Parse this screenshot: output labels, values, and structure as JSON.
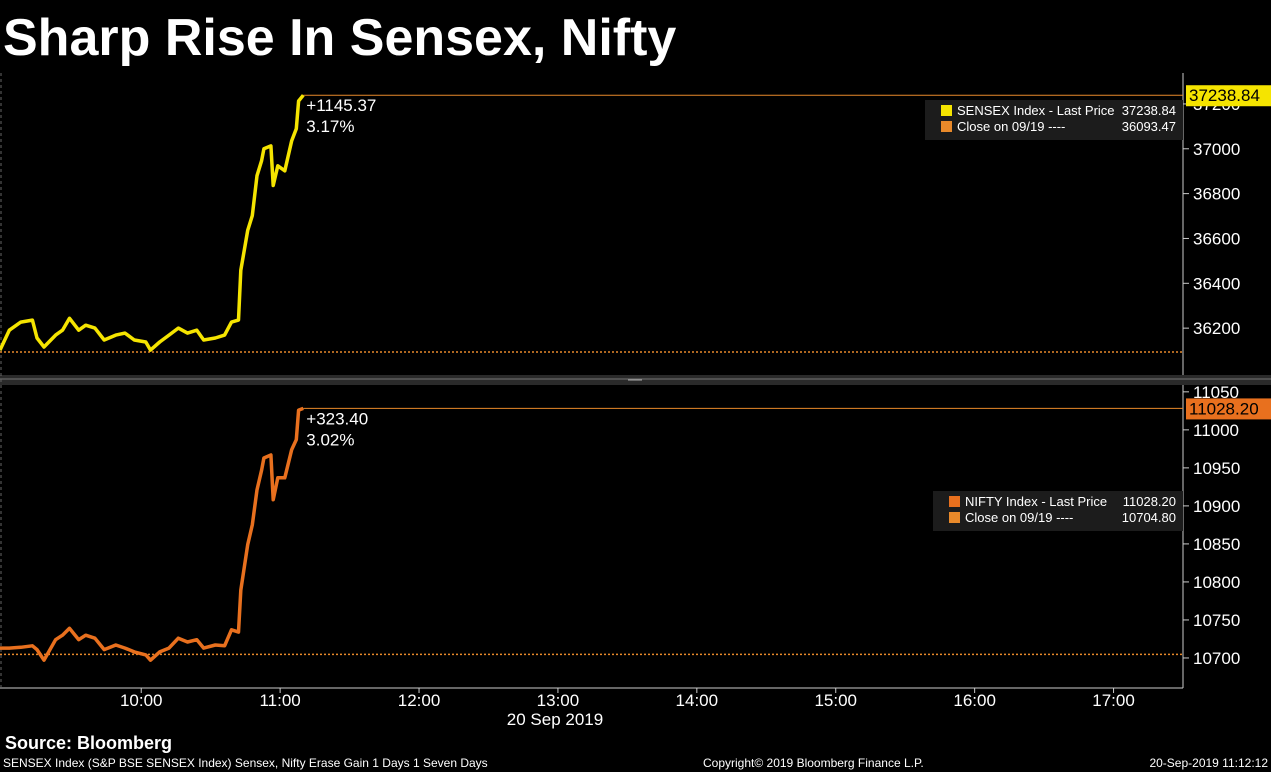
{
  "title": "Sharp Rise In Sensex, Nifty",
  "chart_data": [
    {
      "type": "line",
      "x": [
        539,
        543,
        548,
        553,
        555,
        558,
        563,
        566,
        569,
        573,
        576,
        580,
        584,
        589,
        593,
        597,
        602,
        604,
        608,
        612,
        616,
        620,
        624,
        627,
        632,
        636,
        639,
        642,
        643,
        646,
        648,
        650,
        652,
        653,
        656,
        657,
        659,
        662,
        665,
        667,
        668,
        670
      ],
      "series": [
        {
          "name": "SENSEX Index - Last Price",
          "color": "#f5e400",
          "values": [
            36102,
            36191,
            36227,
            36236,
            36156,
            36116,
            36169,
            36191,
            36244,
            36191,
            36213,
            36200,
            36147,
            36169,
            36178,
            36147,
            36138,
            36102,
            36138,
            36169,
            36200,
            36178,
            36191,
            36147,
            36156,
            36169,
            36227,
            36236,
            36458,
            36636,
            36702,
            36880,
            36947,
            37000,
            37013,
            36836,
            36924,
            36902,
            37036,
            37089,
            37213,
            37238.84
          ]
        }
      ],
      "close": {
        "name": "Close on 09/19 ----",
        "value": 36093.47,
        "label": "36093.47",
        "color": "#e8892a"
      },
      "last_price": {
        "value": 37238.84,
        "label": "37238.84"
      },
      "change_label": "+1145.37",
      "change_pct": "3.17%",
      "xlim": [
        539,
        1050
      ],
      "ylim": [
        35991,
        37338
      ],
      "yticks": [
        36200,
        36400,
        36600,
        36800,
        37000,
        37200
      ]
    },
    {
      "type": "line",
      "x": [
        539,
        543,
        548,
        553,
        555,
        558,
        563,
        566,
        569,
        573,
        576,
        580,
        584,
        589,
        593,
        597,
        602,
        604,
        608,
        612,
        616,
        620,
        624,
        627,
        632,
        636,
        639,
        642,
        643,
        646,
        648,
        650,
        652,
        653,
        656,
        657,
        659,
        662,
        665,
        667,
        668,
        670
      ],
      "series": [
        {
          "name": "NIFTY Index - Last Price",
          "color": "#e8701e",
          "values": [
            10713,
            10713,
            10714,
            10716,
            10711,
            10697,
            10724,
            10730,
            10739,
            10724,
            10730,
            10726,
            10711,
            10717,
            10713,
            10708,
            10704,
            10697,
            10708,
            10713,
            10726,
            10721,
            10724,
            10713,
            10717,
            10716,
            10737,
            10734,
            10789,
            10849,
            10875,
            10921,
            10947,
            10963,
            10967,
            10908,
            10937,
            10937,
            10974,
            10987,
            11026,
            11028.2
          ]
        }
      ],
      "close": {
        "name": "Close on 09/19 ----",
        "value": 10704.8,
        "label": "10704.80",
        "color": "#e8892a"
      },
      "last_price": {
        "value": 11028.2,
        "label": "11028.20"
      },
      "change_label": "+323.40",
      "change_pct": "3.02%",
      "xlim": [
        539,
        1050
      ],
      "xticks": [
        {
          "value": 600,
          "label": "10:00"
        },
        {
          "value": 660,
          "label": "11:00"
        },
        {
          "value": 720,
          "label": "12:00"
        },
        {
          "value": 780,
          "label": "13:00"
        },
        {
          "value": 840,
          "label": "14:00"
        },
        {
          "value": 900,
          "label": "15:00"
        },
        {
          "value": 960,
          "label": "16:00"
        },
        {
          "value": 1020,
          "label": "17:00"
        }
      ],
      "xlabel": "20 Sep 2019",
      "ylim": [
        10660.5,
        11059
      ],
      "yticks": [
        10700,
        10750,
        10800,
        10850,
        10900,
        10950,
        11000,
        11050
      ]
    }
  ],
  "footer": {
    "source": "Source: Bloomberg",
    "description": "SENSEX Index (S&P BSE SENSEX Index) Sensex, Nifty Erase Gain 1 Days 1 Seven Days",
    "copyright": "Copyright© 2019 Bloomberg Finance L.P.",
    "timestamp": "20-Sep-2019 11:12:12"
  }
}
